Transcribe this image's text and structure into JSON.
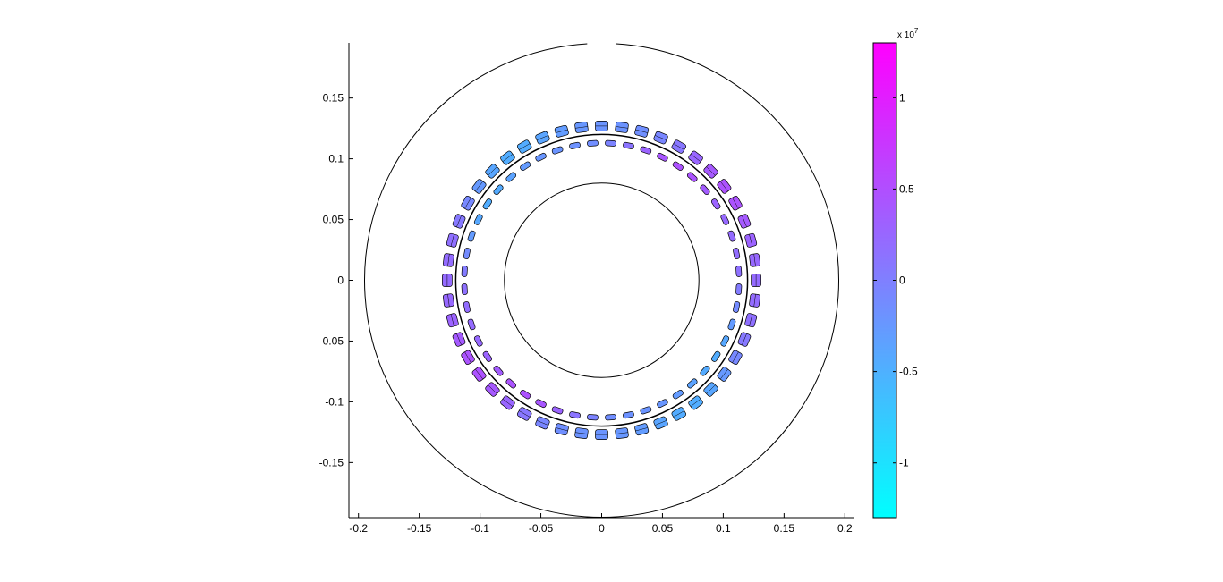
{
  "chart_data": {
    "type": "other",
    "description_kind": "field plot of motor cross-section (patches colored by value)",
    "xticks": [
      "-0.2",
      "-0.15",
      "-0.1",
      "-0.05",
      "0",
      "0.05",
      "0.1",
      "0.15",
      "0.2"
    ],
    "yticks": [
      "0.15",
      "0.1",
      "0.05",
      "0",
      "-0.05",
      "-0.1",
      "-0.15"
    ],
    "xtick_values": [
      -0.2,
      -0.15,
      -0.1,
      -0.05,
      0,
      0.05,
      0.1,
      0.15,
      0.2
    ],
    "ytick_values": [
      0.15,
      0.1,
      0.05,
      0,
      -0.05,
      -0.1,
      -0.15
    ],
    "xlim": [
      -0.2,
      0.2
    ],
    "ylim": [
      -0.195,
      0.195
    ],
    "circles_radius": [
      0.195,
      0.08,
      0.12
    ],
    "outer_gap_deg": 3.5,
    "slot_rings": [
      {
        "radius": 0.127,
        "count": 48,
        "phase": 0
      },
      {
        "radius": 0.113,
        "count": 48,
        "phase": 3.75
      }
    ],
    "colorbar": {
      "ticks": [
        "1",
        "0.5",
        "0",
        "-0.5",
        "-1"
      ],
      "tick_values": [
        1,
        0.5,
        0,
        -0.5,
        -1
      ],
      "exponent_label": "x 10",
      "exponent_power": "7",
      "range": [
        -1.3,
        1.3
      ],
      "colormap": "cool",
      "color_low": "#00ffff",
      "color_high": "#ff00ff"
    }
  }
}
